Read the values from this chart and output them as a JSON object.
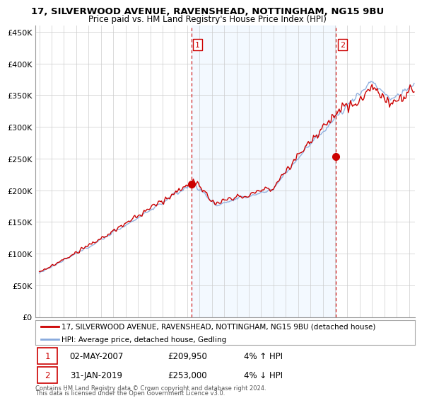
{
  "title": "17, SILVERWOOD AVENUE, RAVENSHEAD, NOTTINGHAM, NG15 9BU",
  "subtitle": "Price paid vs. HM Land Registry's House Price Index (HPI)",
  "ylabel_ticks": [
    "£0",
    "£50K",
    "£100K",
    "£150K",
    "£200K",
    "£250K",
    "£300K",
    "£350K",
    "£400K",
    "£450K"
  ],
  "ytick_values": [
    0,
    50000,
    100000,
    150000,
    200000,
    250000,
    300000,
    350000,
    400000,
    450000
  ],
  "ylim": [
    0,
    460000
  ],
  "xlim_start": 1994.7,
  "xlim_end": 2025.5,
  "sale1_x": 2007.33,
  "sale1_y": 209950,
  "sale2_x": 2019.08,
  "sale2_y": 253000,
  "legend_line1": "17, SILVERWOOD AVENUE, RAVENSHEAD, NOTTINGHAM, NG15 9BU (detached house)",
  "legend_line2": "HPI: Average price, detached house, Gedling",
  "table_row1_num": "1",
  "table_row1_date": "02-MAY-2007",
  "table_row1_price": "£209,950",
  "table_row1_hpi": "4% ↑ HPI",
  "table_row2_num": "2",
  "table_row2_date": "31-JAN-2019",
  "table_row2_price": "£253,000",
  "table_row2_hpi": "4% ↓ HPI",
  "footnote1": "Contains HM Land Registry data © Crown copyright and database right 2024.",
  "footnote2": "This data is licensed under the Open Government Licence v3.0.",
  "color_red": "#cc0000",
  "color_blue": "#88aadd",
  "color_dashed": "#cc0000",
  "shade_color": "#ddeeff",
  "background_color": "#ffffff",
  "grid_color": "#cccccc"
}
